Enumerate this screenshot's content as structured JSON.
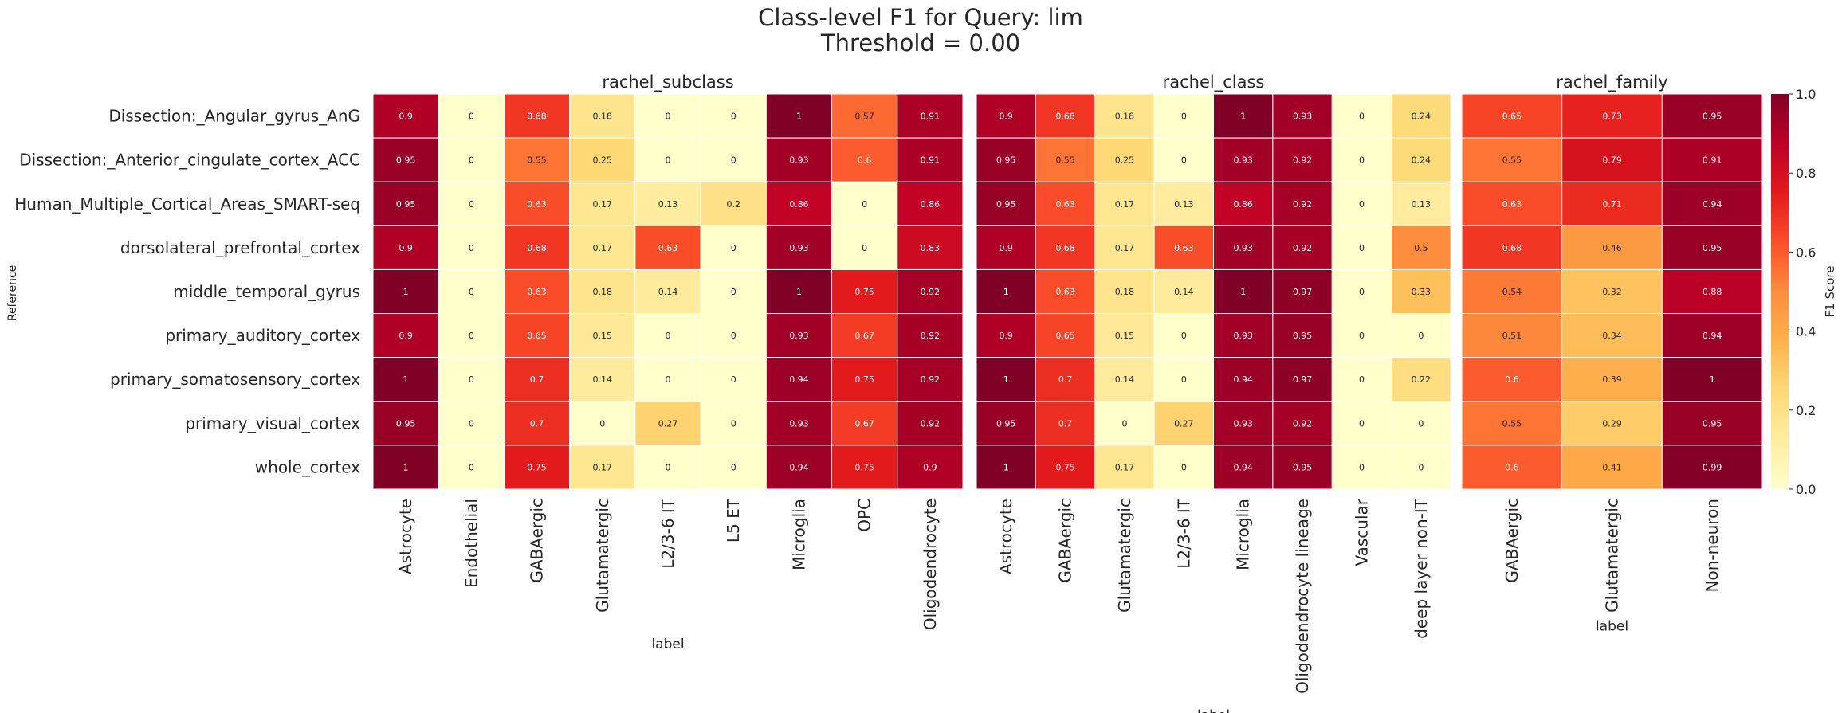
{
  "title": "Class-level F1 for Query: lim",
  "subtitle": "Threshold = 0.00",
  "y_axis_label": "Reference",
  "colorbar": {
    "label": "F1 Score",
    "ticks": [
      "0.0",
      "0.2",
      "0.4",
      "0.6",
      "0.8",
      "1.0"
    ],
    "range": [
      0,
      1
    ],
    "colormap": "YlOrRd",
    "stops": [
      "#ffffcc",
      "#ffeda0",
      "#fed976",
      "#feb24c",
      "#fd8d3c",
      "#fc4e2a",
      "#e31a1c",
      "#bd0026",
      "#800026"
    ]
  },
  "rows": [
    "Dissection:_Angular_gyrus_AnG",
    "Dissection:_Anterior_cingulate_cortex_ACC",
    "Human_Multiple_Cortical_Areas_SMART-seq",
    "dorsolateral_prefrontal_cortex",
    "middle_temporal_gyrus",
    "primary_auditory_cortex",
    "primary_somatosensory_cortex",
    "primary_visual_cortex",
    "whole_cortex"
  ],
  "chart_data": [
    {
      "type": "heatmap",
      "title": "rachel_subclass",
      "xlabel": "label",
      "ylabel": "Reference",
      "categories": [
        "Astrocyte",
        "Endothelial",
        "GABAergic",
        "Glutamatergic",
        "L2/3-6 IT",
        "L5 ET",
        "Microglia",
        "OPC",
        "Oligodendrocyte"
      ],
      "values": [
        [
          0.9,
          0,
          0.68,
          0.18,
          0,
          0,
          1,
          0.57,
          0.91
        ],
        [
          0.95,
          0,
          0.55,
          0.25,
          0,
          0,
          0.93,
          0.6,
          0.91
        ],
        [
          0.95,
          0,
          0.63,
          0.17,
          0.13,
          0.2,
          0.86,
          0,
          0.86
        ],
        [
          0.9,
          0,
          0.68,
          0.17,
          0.63,
          0,
          0.93,
          0,
          0.83
        ],
        [
          1,
          0,
          0.63,
          0.18,
          0.14,
          0,
          1,
          0.75,
          0.92
        ],
        [
          0.9,
          0,
          0.65,
          0.15,
          0,
          0,
          0.93,
          0.67,
          0.92
        ],
        [
          1,
          0,
          0.7,
          0.14,
          0,
          0,
          0.94,
          0.75,
          0.92
        ],
        [
          0.95,
          0,
          0.7,
          0,
          0.27,
          0,
          0.93,
          0.67,
          0.92
        ],
        [
          1,
          0,
          0.75,
          0.17,
          0,
          0,
          0.94,
          0.75,
          0.9
        ]
      ]
    },
    {
      "type": "heatmap",
      "title": "rachel_class",
      "xlabel": "label",
      "categories": [
        "Astrocyte",
        "GABAergic",
        "Glutamatergic",
        "L2/3-6 IT",
        "Microglia",
        "Oligodendrocyte lineage",
        "Vascular",
        "deep layer non-IT"
      ],
      "values": [
        [
          0.9,
          0.68,
          0.18,
          0,
          1,
          0.93,
          0,
          0.24
        ],
        [
          0.95,
          0.55,
          0.25,
          0,
          0.93,
          0.92,
          0,
          0.24
        ],
        [
          0.95,
          0.63,
          0.17,
          0.13,
          0.86,
          0.92,
          0,
          0.13
        ],
        [
          0.9,
          0.68,
          0.17,
          0.63,
          0.93,
          0.92,
          0,
          0.5
        ],
        [
          1,
          0.63,
          0.18,
          0.14,
          1,
          0.97,
          0,
          0.33
        ],
        [
          0.9,
          0.65,
          0.15,
          0,
          0.93,
          0.95,
          0,
          0
        ],
        [
          1,
          0.7,
          0.14,
          0,
          0.94,
          0.97,
          0,
          0.22
        ],
        [
          0.95,
          0.7,
          0,
          0.27,
          0.93,
          0.92,
          0,
          0
        ],
        [
          1,
          0.75,
          0.17,
          0,
          0.94,
          0.95,
          0,
          0
        ]
      ]
    },
    {
      "type": "heatmap",
      "title": "rachel_family",
      "xlabel": "label",
      "categories": [
        "GABAergic",
        "Glutamatergic",
        "Non-neuron"
      ],
      "values": [
        [
          0.65,
          0.73,
          0.95
        ],
        [
          0.55,
          0.79,
          0.91
        ],
        [
          0.63,
          0.71,
          0.94
        ],
        [
          0.68,
          0.46,
          0.95
        ],
        [
          0.54,
          0.32,
          0.88
        ],
        [
          0.51,
          0.34,
          0.94
        ],
        [
          0.6,
          0.39,
          1
        ],
        [
          0.55,
          0.29,
          0.95
        ],
        [
          0.6,
          0.41,
          0.99
        ]
      ]
    }
  ]
}
